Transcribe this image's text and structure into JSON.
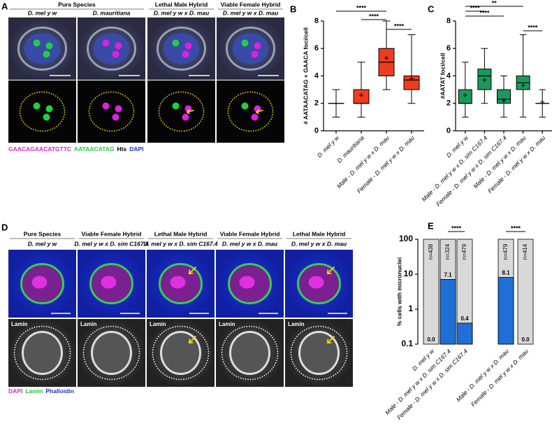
{
  "panel_a": {
    "label": "A",
    "headers": [
      "Pure Species",
      "Lethal Male Hybrid",
      "Viable Female Hybrid"
    ],
    "columns": [
      "D. mel y w",
      "D. mauritiana",
      "D. mel y w x D. mau",
      "D. mel y w x D. mau"
    ],
    "legend": [
      {
        "text": "GAACAGAACATGTTC",
        "color": "#e020e0"
      },
      {
        "text": "AATAACATAG",
        "color": "#20d040"
      },
      {
        "text": "Hts",
        "color": "#000000"
      },
      {
        "text": "DAPI",
        "color": "#2030d0"
      }
    ]
  },
  "panel_d": {
    "label": "D",
    "headers": [
      "Pure Species",
      "Viable Female Hybrid",
      "Lethal Male Hybrid",
      "Viable Female Hybrid",
      "Lethal Male Hybrid"
    ],
    "columns": [
      "D. mel y w",
      "D. mel y w x D. sim C167.4",
      "D. mel y w x D. sim C167.4",
      "D. mel y w x D. mau",
      "D. mel y w x D. mau"
    ],
    "row_label": "Lamin",
    "legend": [
      {
        "text": "DAPI",
        "color": "#e020e0"
      },
      {
        "text": "Lamin",
        "color": "#20c040"
      },
      {
        "text": "Phalloidin",
        "color": "#2030d0"
      }
    ]
  },
  "chart_data": [
    {
      "type": "box",
      "label": "B",
      "ylabel": "# AATAACATAG + GAACA foci/cell",
      "color": "#f03c1e",
      "categories": [
        "D. mel y w",
        "D. mauritiana",
        "Male - D. mel y w x D. mau",
        "Female - D. mel y w x D. mau"
      ],
      "boxes": [
        {
          "min": 1,
          "q1": 2,
          "median": 2,
          "q3": 2,
          "max": 3,
          "mean": 2.0
        },
        {
          "min": 1,
          "q1": 2,
          "median": 2,
          "q3": 3,
          "max": 5,
          "mean": 2.6
        },
        {
          "min": 3,
          "q1": 4,
          "median": 5,
          "q3": 6,
          "max": 8,
          "mean": 5.3
        },
        {
          "min": 2,
          "q1": 3,
          "median": 3.7,
          "q3": 4,
          "max": 7,
          "mean": 3.8
        }
      ],
      "ylim": [
        0,
        8
      ],
      "yticks": [
        0,
        2,
        4,
        6,
        8
      ],
      "annotations": [
        {
          "from": 0,
          "to": 2,
          "label": "****"
        },
        {
          "from": 1,
          "to": 2,
          "label": "****"
        },
        {
          "from": 2,
          "to": 3,
          "label": "****"
        }
      ]
    },
    {
      "type": "box",
      "label": "C",
      "ylabel": "#AATAT foci/cell",
      "color": "#1a9a5a",
      "categories": [
        "D. mel y w",
        "Male - D. mel y w x D. sim C167.4",
        "Female - D. mel y w x D. sim C167.4",
        "Male - D. mel y w x D. mau",
        "Female - D. mel y w x D. mau"
      ],
      "boxes": [
        {
          "min": 1,
          "q1": 2,
          "median": 2,
          "q3": 3,
          "max": 5,
          "mean": 2.6
        },
        {
          "min": 2,
          "q1": 3,
          "median": 4,
          "q3": 4.5,
          "max": 6,
          "mean": 3.7
        },
        {
          "min": 1,
          "q1": 2,
          "median": 2.3,
          "q3": 3,
          "max": 4,
          "mean": 2.2
        },
        {
          "min": 1,
          "q1": 3,
          "median": 3.5,
          "q3": 4,
          "max": 7,
          "mean": 3.3
        },
        {
          "min": 1,
          "q1": 2,
          "median": 2,
          "q3": 2,
          "max": 3,
          "mean": 2.1
        }
      ],
      "ylim": [
        0,
        8
      ],
      "yticks": [
        0,
        2,
        4,
        6,
        8
      ],
      "annotations": [
        {
          "from": 0,
          "to": 3,
          "label": "**"
        },
        {
          "from": 0,
          "to": 1,
          "label": "****"
        },
        {
          "from": 0,
          "to": 2,
          "label": "****"
        },
        {
          "from": 3,
          "to": 4,
          "label": "****"
        }
      ]
    },
    {
      "type": "bar",
      "label": "E",
      "ylabel": "% cells with micronuclei",
      "color": "#1f6fd6",
      "total_color": "#d9d9d9",
      "categories": [
        "D. mel y w",
        "Male - D. mel y w x D. sim C167.4",
        "Female - D. mel y w x D. sim C167.4",
        "Male - D. mel y w x D. mau",
        "Female - D. mel y w x D. mau"
      ],
      "values": [
        0,
        7.1,
        0.4,
        8.1,
        0
      ],
      "value_labels": [
        "0.0",
        "7.1",
        "0.4",
        "8.1",
        "0.0"
      ],
      "n_labels": [
        "n=438",
        "n=324",
        "n=479",
        "n=479",
        "n=414"
      ],
      "log_scale": true,
      "ylim": [
        0.1,
        100
      ],
      "yticks": [
        0.1,
        1,
        10,
        100
      ],
      "annotations": [
        {
          "from": 1,
          "to": 2,
          "label": "****"
        },
        {
          "from": 3,
          "to": 4,
          "label": "****"
        }
      ]
    }
  ]
}
